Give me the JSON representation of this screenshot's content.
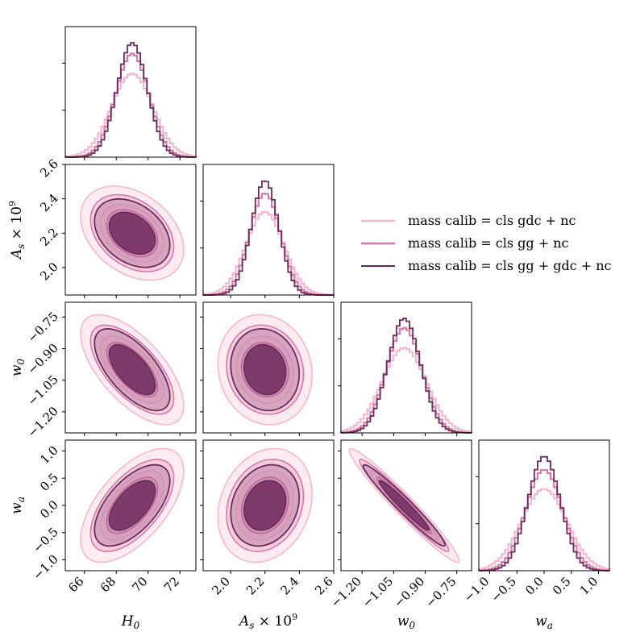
{
  "chart_data": {
    "type": "corner",
    "parameters": [
      {
        "key": "H0",
        "label": "H",
        "sub": "0",
        "sup": "",
        "suffix": "",
        "ticks": [
          66,
          68,
          70,
          72
        ],
        "tick_labels": [
          "66",
          "68",
          "70",
          "72"
        ],
        "range": [
          64.8,
          73.0
        ]
      },
      {
        "key": "As",
        "label": "A",
        "sub": "s",
        "sup": "",
        "suffix": " × 10",
        "suffix_sup": "9",
        "ticks": [
          2.0,
          2.2,
          2.4,
          2.6
        ],
        "tick_labels": [
          "2.0",
          "2.2",
          "2.4",
          "2.6"
        ],
        "range": [
          1.84,
          2.6
        ]
      },
      {
        "key": "w0",
        "label": "w",
        "sub": "0",
        "sup": "",
        "suffix": "",
        "ticks": [
          -1.2,
          -1.05,
          -0.9,
          -0.75
        ],
        "tick_labels": [
          "−1.20",
          "−1.05",
          "−0.90",
          "−0.75"
        ],
        "range": [
          -1.3,
          -0.68
        ]
      },
      {
        "key": "wa",
        "label": "w",
        "sub": "a",
        "sup": "",
        "suffix": "",
        "ticks": [
          -1.0,
          -0.5,
          0.0,
          0.5,
          1.0
        ],
        "tick_labels": [
          "−1.0",
          "−0.5",
          "0.0",
          "0.5",
          "1.0"
        ],
        "range": [
          -1.2,
          1.2
        ]
      }
    ],
    "series": [
      {
        "name": "mass calib = cls gdc + nc",
        "color": "#f7b6cf",
        "fill": "#fbd3e2",
        "mean": [
          69.0,
          2.2,
          -1.0,
          0.0
        ],
        "sd": [
          1.3,
          0.11,
          0.105,
          0.42
        ]
      },
      {
        "name": "mass calib = cls gg + nc",
        "color": "#d87aa8",
        "fill": "#e9a9c8",
        "mean": [
          69.0,
          2.2,
          -1.0,
          0.0
        ],
        "sd": [
          1.05,
          0.09,
          0.085,
          0.34
        ]
      },
      {
        "name": "mass calib = cls gg + gdc + nc",
        "color": "#6b2d5e",
        "fill": "#7a3568",
        "mean": [
          69.0,
          2.2,
          -1.0,
          0.0
        ],
        "sd": [
          0.95,
          0.08,
          0.078,
          0.3
        ]
      }
    ],
    "correlations": {
      "H0_As": -0.35,
      "H0_w0": -0.65,
      "H0_wa": 0.6,
      "As_w0": -0.1,
      "As_wa": 0.2,
      "w0_wa": -0.97
    },
    "legend_placement": "upper-right",
    "grid": false
  }
}
